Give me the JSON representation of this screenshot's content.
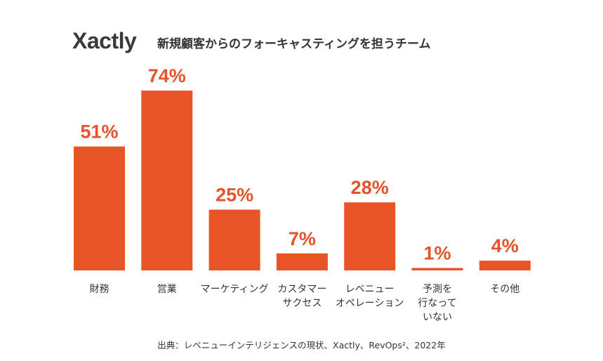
{
  "logo": "Xactly",
  "chart_data": {
    "type": "bar",
    "title": "新規顧客からのフォーキャスティングを担うチーム",
    "categories": [
      "財務",
      "営業",
      "マーケティング",
      "カスタマー\nサクセス",
      "レベニュー\nオペレーション",
      "予測を\n行なって\nいない",
      "その他"
    ],
    "values": [
      51,
      74,
      25,
      7,
      28,
      1,
      4
    ],
    "value_labels": [
      "51%",
      "74%",
      "25%",
      "7%",
      "28%",
      "1%",
      "4%"
    ],
    "unit": "%",
    "bar_color": "#e95426",
    "label_color": "#e4532a",
    "ylim": [
      0,
      74
    ],
    "grid": false
  },
  "source": "出典：レベニューインテリジェンスの現状、Xactly、RevOps²、2022年"
}
